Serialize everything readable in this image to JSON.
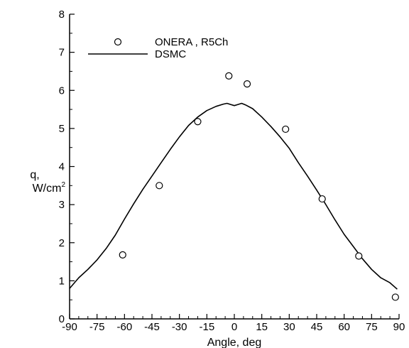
{
  "chart_data": {
    "type": "scatter",
    "title": "",
    "xlabel": "Angle, deg",
    "ylabel": {
      "symbol": "q,",
      "unit": "W/cm",
      "superscript": "2"
    },
    "xlim": [
      -90,
      90
    ],
    "ylim": [
      0,
      8
    ],
    "xticks": [
      -90,
      -75,
      -60,
      -45,
      -30,
      -15,
      0,
      15,
      30,
      45,
      60,
      75,
      90
    ],
    "yticks": [
      0,
      1,
      2,
      3,
      4,
      5,
      6,
      7,
      8
    ],
    "grid": false,
    "legend": {
      "placement": "top-left"
    },
    "series": [
      {
        "name": "ONERA , R5Ch",
        "kind": "scatter",
        "marker": "open-circle",
        "color": "#000000",
        "x": [
          -61,
          -41,
          -20,
          -3,
          7,
          28,
          48,
          68,
          88
        ],
        "y": [
          1.68,
          3.5,
          5.18,
          6.38,
          6.17,
          4.98,
          3.15,
          1.65,
          0.57
        ]
      },
      {
        "name": "DSMC",
        "kind": "line",
        "color": "#000000",
        "x": [
          -90,
          -85,
          -80,
          -75,
          -70,
          -65,
          -60,
          -55,
          -50,
          -45,
          -40,
          -35,
          -30,
          -25,
          -20,
          -15,
          -10,
          -6,
          -4,
          -2,
          0,
          2,
          4,
          6,
          10,
          15,
          20,
          25,
          30,
          35,
          40,
          45,
          50,
          55,
          60,
          65,
          70,
          75,
          80,
          85,
          89
        ],
        "y": [
          0.8,
          1.08,
          1.3,
          1.55,
          1.85,
          2.2,
          2.62,
          3.02,
          3.4,
          3.75,
          4.1,
          4.45,
          4.78,
          5.08,
          5.3,
          5.47,
          5.58,
          5.64,
          5.66,
          5.63,
          5.6,
          5.63,
          5.66,
          5.62,
          5.52,
          5.3,
          5.05,
          4.78,
          4.48,
          4.1,
          3.75,
          3.38,
          3.0,
          2.6,
          2.22,
          1.9,
          1.58,
          1.3,
          1.08,
          0.95,
          0.78
        ]
      }
    ]
  }
}
